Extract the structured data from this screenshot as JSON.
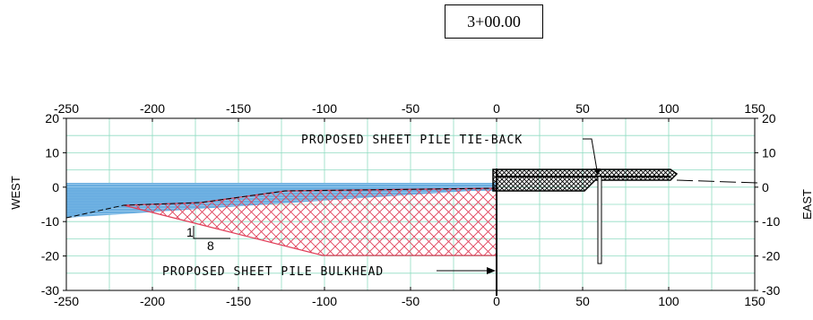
{
  "station": "3+00.00",
  "axes": {
    "x_ticks": [
      "-250",
      "-200",
      "-150",
      "-100",
      "-50",
      "0",
      "50",
      "100",
      "150"
    ],
    "y_ticks": [
      "20",
      "10",
      "0",
      "-10",
      "-20",
      "-30"
    ],
    "x_range": [
      -250,
      150
    ],
    "y_range": [
      -30,
      20
    ],
    "left_label": "WEST",
    "right_label": "EAST"
  },
  "annotations": {
    "tie_back": "PROPOSED SHEET PILE TIE-BACK",
    "bulkhead": "PROPOSED SHEET PILE BULKHEAD",
    "slope_rise": "1",
    "slope_run": "8"
  },
  "colors": {
    "water": "#6aaee0",
    "grid": "#8fdcc2",
    "dredge_hatch": "#e0405a",
    "fill_hatch": "#000000"
  }
}
